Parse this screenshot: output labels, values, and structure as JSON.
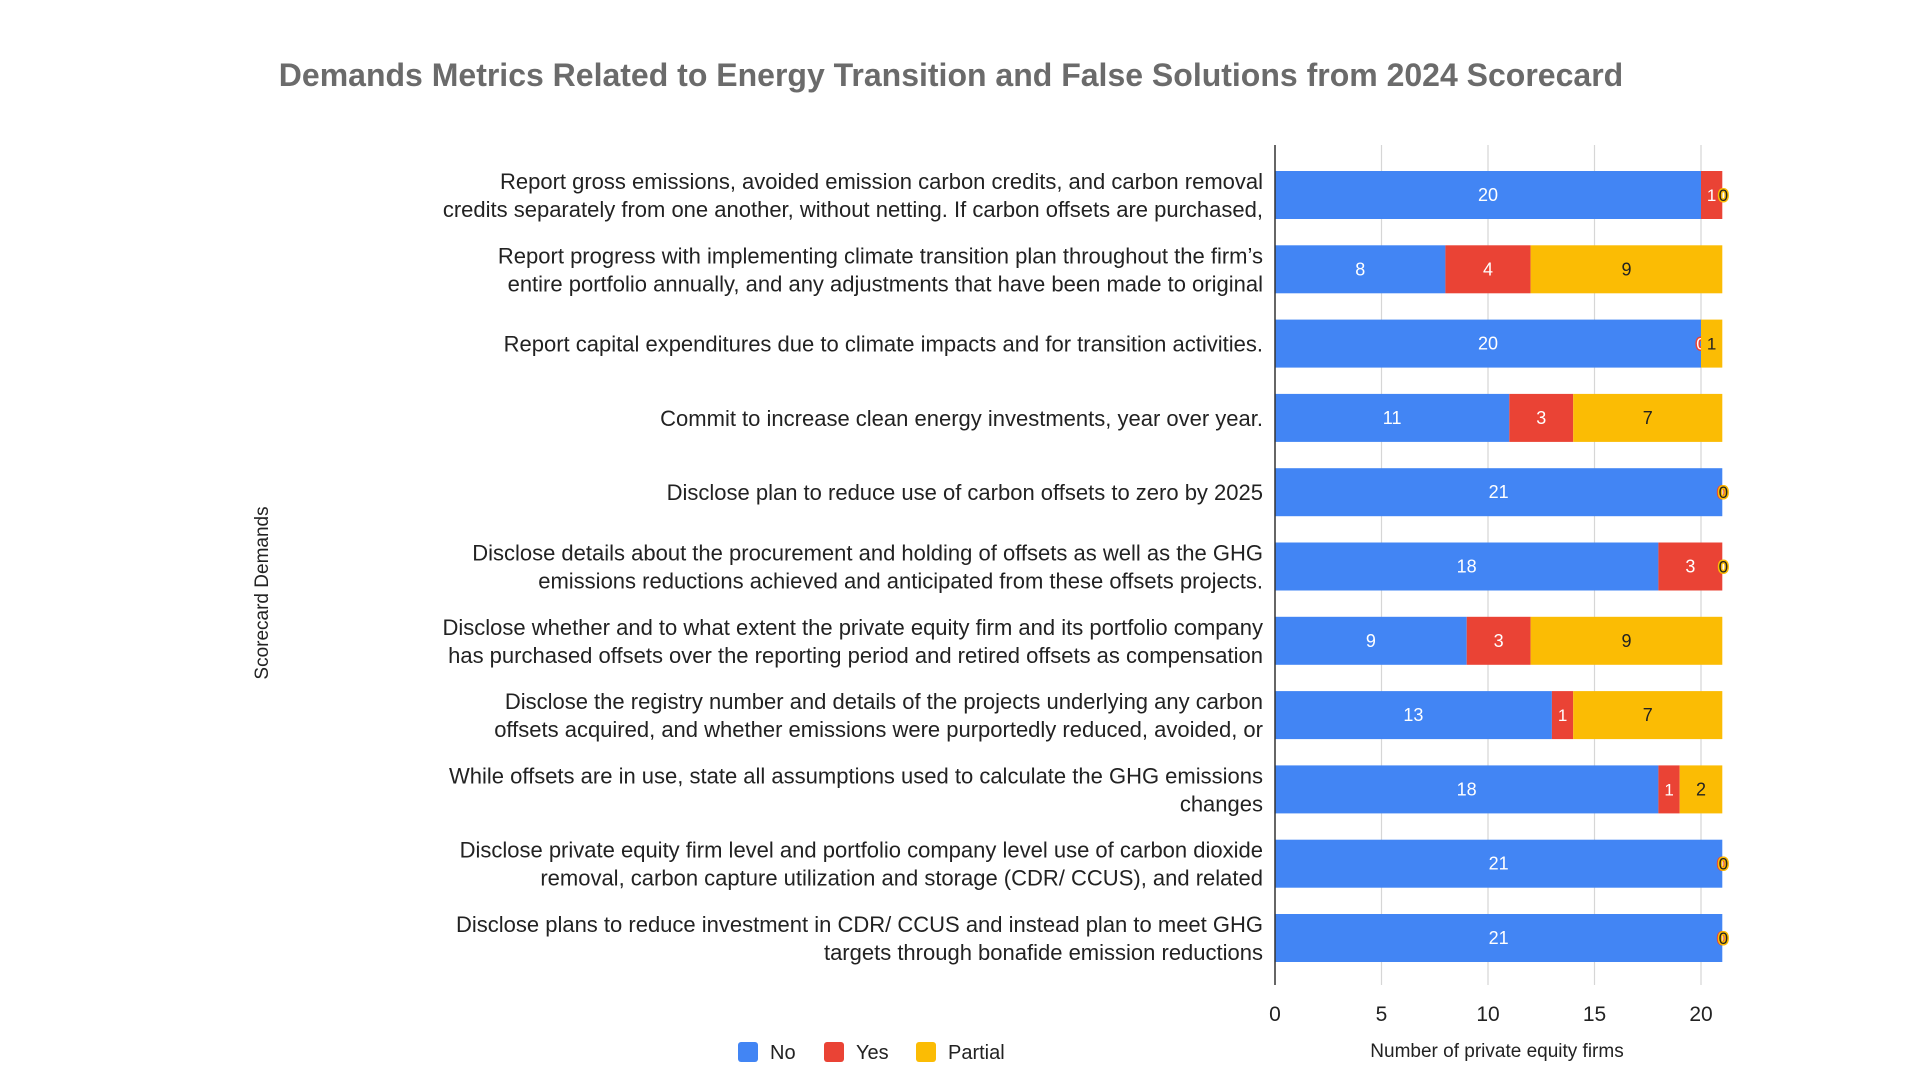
{
  "chart_data": {
    "type": "bar",
    "orientation": "horizontal",
    "stacked": true,
    "title": "Demands Metrics Related to Energy Transition and False Solutions from 2024 Scorecard",
    "xlabel": "Number of private equity firms",
    "ylabel": "Scorecard Demands",
    "xlim": [
      0,
      22
    ],
    "xticks": [
      0,
      5,
      10,
      15,
      20
    ],
    "grid": true,
    "legend_position": "bottom",
    "categories": [
      [
        "Report gross emissions, avoided emission carbon credits, and carbon removal",
        "credits separately from one another, without netting. If carbon offsets are purchased,"
      ],
      [
        "Report progress with implementing climate transition plan throughout the firm’s",
        "entire portfolio annually, and any adjustments that have been made to original"
      ],
      [
        "Report capital expenditures due to climate impacts and for transition activities."
      ],
      [
        "Commit to increase clean energy investments, year over year."
      ],
      [
        "Disclose plan to reduce use of carbon offsets to zero by 2025"
      ],
      [
        "Disclose details about the procurement and holding of offsets as well as the GHG",
        "emissions reductions achieved and anticipated from these offsets projects."
      ],
      [
        "Disclose whether and to what extent the private equity firm and its portfolio company",
        "has purchased offsets over the reporting period and retired offsets as compensation"
      ],
      [
        "Disclose the registry number and details of the projects underlying any carbon",
        "offsets acquired, and whether emissions were purportedly reduced, avoided, or"
      ],
      [
        "While offsets are in use, state all assumptions used to calculate the GHG emissions",
        "changes"
      ],
      [
        "Disclose private equity firm level and portfolio company level use of carbon dioxide",
        "removal, carbon capture utilization and storage (CDR/ CCUS), and related"
      ],
      [
        "Disclose plans to reduce investment in CDR/ CCUS and instead plan to meet GHG",
        "targets through bonafide emission reductions"
      ]
    ],
    "series": [
      {
        "name": "No",
        "color": "#4285F4",
        "label_color": "#ffffff",
        "values": [
          20,
          8,
          20,
          11,
          21,
          18,
          9,
          13,
          18,
          21,
          21
        ]
      },
      {
        "name": "Yes",
        "color": "#EA4335",
        "label_color": "#ffffff",
        "values": [
          1,
          4,
          0,
          3,
          0,
          3,
          3,
          1,
          1,
          0,
          0
        ]
      },
      {
        "name": "Partial",
        "color": "#FBBC04",
        "label_color": "#222222",
        "values": [
          0,
          9,
          1,
          7,
          0,
          0,
          9,
          7,
          2,
          0,
          0
        ]
      }
    ]
  }
}
